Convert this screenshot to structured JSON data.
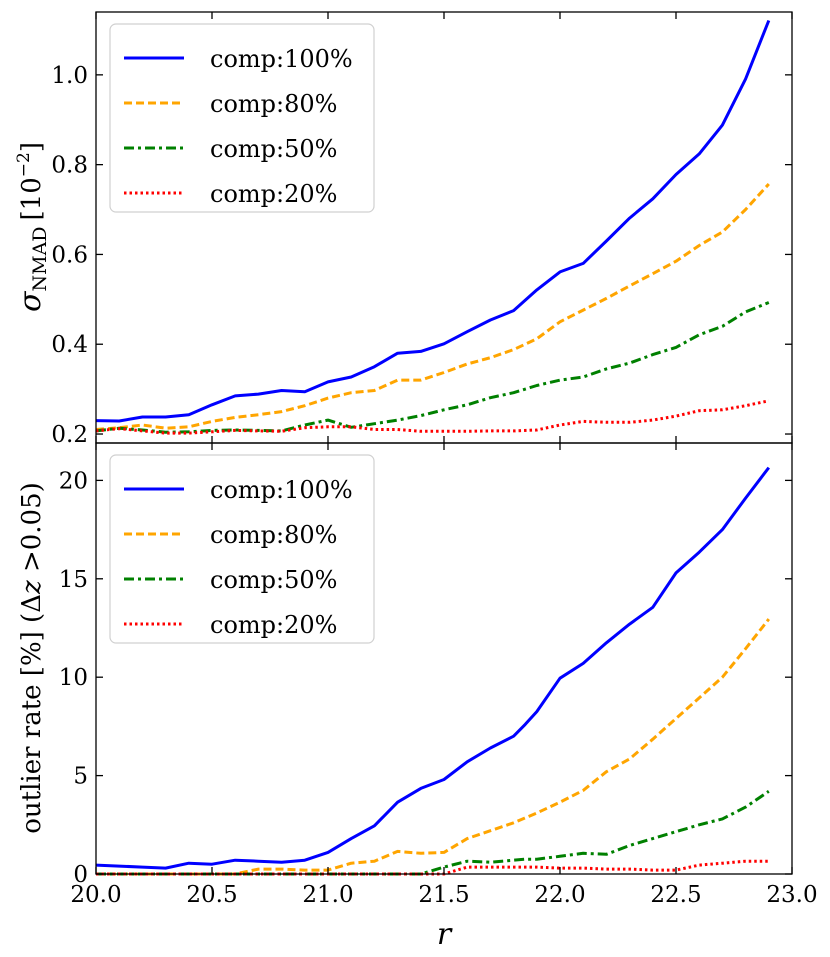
{
  "chart_data": [
    {
      "type": "line",
      "ylabel_main": "σ",
      "ylabel_sub": "NMAD",
      "ylabel_unit_base": "[10",
      "ylabel_unit_exp": "−2",
      "ylabel_unit_close": "]",
      "xlabel": "",
      "xlim": [
        20.0,
        23.0
      ],
      "ylim": [
        0.18,
        1.14
      ],
      "yticks": [
        0.2,
        0.4,
        0.6,
        0.8,
        1.0
      ],
      "ytick_labels": [
        "0.2",
        "0.4",
        "0.6",
        "0.8",
        "1.0"
      ],
      "legend_position": "top-left",
      "x": [
        20.0,
        20.1,
        20.2,
        20.3,
        20.4,
        20.5,
        20.6,
        20.7,
        20.8,
        20.9,
        21.0,
        21.1,
        21.2,
        21.3,
        21.4,
        21.5,
        21.6,
        21.7,
        21.8,
        21.9,
        22.0,
        22.1,
        22.2,
        22.3,
        22.4,
        22.5,
        22.6,
        22.7,
        22.8,
        22.9
      ],
      "series": [
        {
          "name": "comp:100%",
          "color": "#0000ff",
          "style": "solid",
          "values": [
            0.23,
            0.229,
            0.238,
            0.238,
            0.243,
            0.265,
            0.285,
            0.289,
            0.297,
            0.294,
            0.316,
            0.327,
            0.35,
            0.38,
            0.384,
            0.401,
            0.428,
            0.454,
            0.475,
            0.521,
            0.561,
            0.58,
            0.63,
            0.681,
            0.724,
            0.778,
            0.824,
            0.888,
            0.991,
            1.121
          ]
        },
        {
          "name": "comp:80%",
          "color": "#ffa500",
          "style": "dashed",
          "values": [
            0.21,
            0.214,
            0.22,
            0.213,
            0.216,
            0.228,
            0.237,
            0.243,
            0.25,
            0.263,
            0.28,
            0.292,
            0.297,
            0.32,
            0.32,
            0.337,
            0.356,
            0.37,
            0.388,
            0.412,
            0.45,
            0.476,
            0.502,
            0.53,
            0.557,
            0.585,
            0.62,
            0.65,
            0.7,
            0.757
          ]
        },
        {
          "name": "comp:50%",
          "color": "#008000",
          "style": "dashdot",
          "values": [
            0.207,
            0.213,
            0.209,
            0.204,
            0.205,
            0.208,
            0.209,
            0.208,
            0.207,
            0.22,
            0.231,
            0.215,
            0.223,
            0.231,
            0.241,
            0.254,
            0.265,
            0.281,
            0.292,
            0.308,
            0.32,
            0.327,
            0.345,
            0.358,
            0.377,
            0.393,
            0.421,
            0.44,
            0.472,
            0.493
          ]
        },
        {
          "name": "comp:20%",
          "color": "#ff0000",
          "style": "dotted",
          "values": [
            0.207,
            0.212,
            0.207,
            0.202,
            0.202,
            0.205,
            0.208,
            0.207,
            0.206,
            0.214,
            0.216,
            0.216,
            0.21,
            0.21,
            0.206,
            0.206,
            0.206,
            0.207,
            0.207,
            0.209,
            0.22,
            0.228,
            0.226,
            0.226,
            0.231,
            0.24,
            0.252,
            0.254,
            0.263,
            0.274
          ]
        }
      ]
    },
    {
      "type": "line",
      "ylabel": "outlier rate [%] (Δ",
      "ylabel_z": "z",
      "ylabel_tail": " >0.05)",
      "xlabel": "r",
      "xlim": [
        20.0,
        23.0
      ],
      "ylim": [
        0,
        21.9
      ],
      "xticks": [
        20.0,
        20.5,
        21.0,
        21.5,
        22.0,
        22.5,
        23.0
      ],
      "xtick_labels": [
        "20.0",
        "20.5",
        "21.0",
        "21.5",
        "22.0",
        "22.5",
        "23.0"
      ],
      "yticks": [
        0,
        5,
        10,
        15,
        20
      ],
      "ytick_labels": [
        "0",
        "5",
        "10",
        "15",
        "20"
      ],
      "legend_position": "top-left",
      "x": [
        20.0,
        20.1,
        20.2,
        20.3,
        20.4,
        20.5,
        20.6,
        20.7,
        20.8,
        20.9,
        21.0,
        21.1,
        21.2,
        21.3,
        21.4,
        21.5,
        21.6,
        21.7,
        21.8,
        21.85,
        21.9,
        22.0,
        22.1,
        22.2,
        22.3,
        22.4,
        22.5,
        22.6,
        22.7,
        22.8,
        22.9
      ],
      "series": [
        {
          "name": "comp:100%",
          "color": "#0000ff",
          "style": "solid",
          "values": [
            0.45,
            0.4,
            0.35,
            0.3,
            0.55,
            0.5,
            0.7,
            0.65,
            0.6,
            0.7,
            1.1,
            1.8,
            2.45,
            3.65,
            4.35,
            4.8,
            5.7,
            6.4,
            7.0,
            7.6,
            8.25,
            9.95,
            10.7,
            11.75,
            12.7,
            13.55,
            15.3,
            16.35,
            17.5,
            19.1,
            20.65
          ]
        },
        {
          "name": "comp:80%",
          "color": "#ffa500",
          "style": "dashed",
          "values": [
            0.0,
            0.0,
            0.0,
            0.0,
            0.0,
            0.0,
            0.0,
            0.25,
            0.25,
            0.2,
            0.2,
            0.55,
            0.65,
            1.15,
            1.05,
            1.1,
            1.8,
            2.2,
            2.6,
            2.85,
            3.1,
            3.65,
            4.25,
            5.2,
            5.85,
            6.85,
            7.9,
            8.95,
            10.0,
            11.45,
            12.95
          ]
        },
        {
          "name": "comp:50%",
          "color": "#008000",
          "style": "dashdot",
          "values": [
            0.0,
            0.0,
            0.0,
            0.0,
            0.0,
            0.0,
            0.0,
            0.0,
            0.0,
            0.0,
            0.0,
            0.0,
            0.0,
            0.0,
            0.0,
            0.35,
            0.65,
            0.6,
            0.7,
            0.75,
            0.75,
            0.9,
            1.05,
            1.0,
            1.45,
            1.8,
            2.15,
            2.5,
            2.8,
            3.4,
            4.2
          ]
        },
        {
          "name": "comp:20%",
          "color": "#ff0000",
          "style": "dotted",
          "values": [
            0.0,
            0.0,
            0.0,
            0.0,
            0.0,
            0.0,
            0.0,
            0.0,
            0.0,
            0.0,
            0.0,
            0.0,
            0.0,
            0.0,
            0.0,
            0.0,
            0.35,
            0.35,
            0.35,
            0.35,
            0.35,
            0.3,
            0.3,
            0.25,
            0.25,
            0.2,
            0.2,
            0.45,
            0.55,
            0.65,
            0.65
          ]
        }
      ]
    }
  ]
}
